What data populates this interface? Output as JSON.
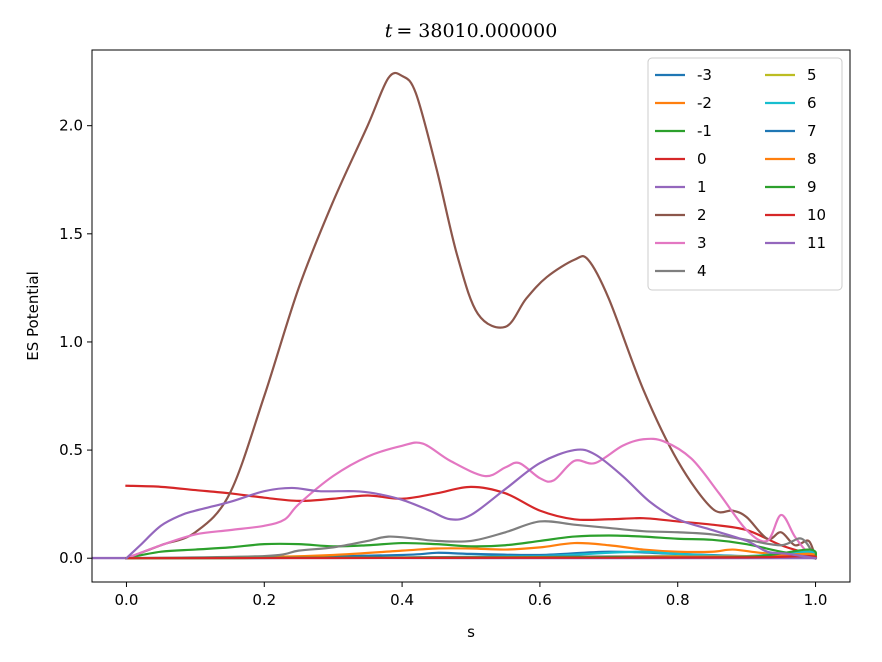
{
  "chart_data": {
    "type": "line",
    "title_var": "t",
    "title_value": "= 38010.000000",
    "xlabel": "s",
    "ylabel": "ES Potential",
    "xlim": [
      -0.05,
      1.05
    ],
    "ylim": [
      -0.11,
      2.35
    ],
    "xticks": [
      "0.0",
      "0.2",
      "0.4",
      "0.6",
      "0.8",
      "1.0"
    ],
    "xtick_values": [
      0.0,
      0.2,
      0.4,
      0.6,
      0.8,
      1.0
    ],
    "yticks": [
      "0.0",
      "0.5",
      "1.0",
      "1.5",
      "2.0"
    ],
    "ytick_values": [
      0.0,
      0.5,
      1.0,
      1.5,
      2.0
    ],
    "legend_position": "top-right",
    "legend_columns": 2,
    "series": [
      {
        "name": "-3",
        "color": "#1f77b4",
        "points": [
          [
            0,
            0
          ],
          [
            0.2,
            0.003
          ],
          [
            0.4,
            0.015
          ],
          [
            0.45,
            0.025
          ],
          [
            0.5,
            0.02
          ],
          [
            0.6,
            0.015
          ],
          [
            0.7,
            0.03
          ],
          [
            0.8,
            0.02
          ],
          [
            0.9,
            0.01
          ],
          [
            0.95,
            0.015
          ],
          [
            1.0,
            0
          ]
        ]
      },
      {
        "name": "-2",
        "color": "#ff7f0e",
        "points": [
          [
            0,
            0
          ],
          [
            0.2,
            0.005
          ],
          [
            0.3,
            0.015
          ],
          [
            0.4,
            0.035
          ],
          [
            0.45,
            0.045
          ],
          [
            0.5,
            0.045
          ],
          [
            0.55,
            0.04
          ],
          [
            0.6,
            0.05
          ],
          [
            0.65,
            0.07
          ],
          [
            0.7,
            0.06
          ],
          [
            0.75,
            0.04
          ],
          [
            0.8,
            0.03
          ],
          [
            0.85,
            0.03
          ],
          [
            0.88,
            0.04
          ],
          [
            0.92,
            0.025
          ],
          [
            0.96,
            0.02
          ],
          [
            0.99,
            0.03
          ],
          [
            1.0,
            0
          ]
        ]
      },
      {
        "name": "-1",
        "color": "#2ca02c",
        "points": [
          [
            0,
            0
          ],
          [
            0.05,
            0.03
          ],
          [
            0.1,
            0.04
          ],
          [
            0.15,
            0.05
          ],
          [
            0.2,
            0.065
          ],
          [
            0.25,
            0.065
          ],
          [
            0.3,
            0.055
          ],
          [
            0.35,
            0.06
          ],
          [
            0.4,
            0.07
          ],
          [
            0.45,
            0.065
          ],
          [
            0.5,
            0.055
          ],
          [
            0.55,
            0.06
          ],
          [
            0.6,
            0.08
          ],
          [
            0.65,
            0.1
          ],
          [
            0.7,
            0.105
          ],
          [
            0.75,
            0.1
          ],
          [
            0.8,
            0.09
          ],
          [
            0.85,
            0.085
          ],
          [
            0.9,
            0.065
          ],
          [
            0.95,
            0.03
          ],
          [
            0.99,
            0.01
          ],
          [
            1.0,
            0
          ]
        ]
      },
      {
        "name": "0",
        "color": "#d62728",
        "points": [
          [
            0,
            0.335
          ],
          [
            0.05,
            0.33
          ],
          [
            0.1,
            0.315
          ],
          [
            0.15,
            0.3
          ],
          [
            0.2,
            0.28
          ],
          [
            0.25,
            0.265
          ],
          [
            0.3,
            0.275
          ],
          [
            0.35,
            0.29
          ],
          [
            0.4,
            0.275
          ],
          [
            0.45,
            0.3
          ],
          [
            0.5,
            0.33
          ],
          [
            0.55,
            0.3
          ],
          [
            0.6,
            0.22
          ],
          [
            0.65,
            0.18
          ],
          [
            0.7,
            0.18
          ],
          [
            0.75,
            0.185
          ],
          [
            0.8,
            0.17
          ],
          [
            0.85,
            0.155
          ],
          [
            0.9,
            0.13
          ],
          [
            0.95,
            0.06
          ],
          [
            0.99,
            0.02
          ],
          [
            1.0,
            0.005
          ]
        ]
      },
      {
        "name": "1",
        "color": "#9467bd",
        "points": [
          [
            0,
            0
          ],
          [
            0.001,
            0.001
          ],
          [
            1.0,
            0
          ]
        ]
      },
      {
        "name": "2",
        "color": "#8c564b",
        "points": [
          [
            0,
            0
          ],
          [
            0.05,
            0.06
          ],
          [
            0.1,
            0.12
          ],
          [
            0.15,
            0.3
          ],
          [
            0.2,
            0.75
          ],
          [
            0.25,
            1.25
          ],
          [
            0.3,
            1.65
          ],
          [
            0.35,
            2.0
          ],
          [
            0.38,
            2.22
          ],
          [
            0.4,
            2.23
          ],
          [
            0.42,
            2.15
          ],
          [
            0.45,
            1.8
          ],
          [
            0.48,
            1.4
          ],
          [
            0.51,
            1.13
          ],
          [
            0.55,
            1.07
          ],
          [
            0.58,
            1.2
          ],
          [
            0.61,
            1.3
          ],
          [
            0.65,
            1.38
          ],
          [
            0.67,
            1.38
          ],
          [
            0.7,
            1.2
          ],
          [
            0.75,
            0.78
          ],
          [
            0.8,
            0.45
          ],
          [
            0.85,
            0.23
          ],
          [
            0.88,
            0.22
          ],
          [
            0.9,
            0.19
          ],
          [
            0.93,
            0.09
          ],
          [
            0.95,
            0.12
          ],
          [
            0.97,
            0.06
          ],
          [
            0.99,
            0.08
          ],
          [
            1.0,
            0
          ]
        ]
      },
      {
        "name": "3",
        "color": "#e377c2",
        "points": [
          [
            0,
            0
          ],
          [
            0.05,
            0.06
          ],
          [
            0.1,
            0.11
          ],
          [
            0.15,
            0.13
          ],
          [
            0.2,
            0.15
          ],
          [
            0.23,
            0.18
          ],
          [
            0.25,
            0.25
          ],
          [
            0.3,
            0.38
          ],
          [
            0.35,
            0.47
          ],
          [
            0.4,
            0.52
          ],
          [
            0.43,
            0.53
          ],
          [
            0.47,
            0.45
          ],
          [
            0.52,
            0.38
          ],
          [
            0.55,
            0.42
          ],
          [
            0.57,
            0.44
          ],
          [
            0.6,
            0.37
          ],
          [
            0.62,
            0.36
          ],
          [
            0.65,
            0.45
          ],
          [
            0.68,
            0.44
          ],
          [
            0.72,
            0.52
          ],
          [
            0.75,
            0.55
          ],
          [
            0.78,
            0.54
          ],
          [
            0.82,
            0.46
          ],
          [
            0.86,
            0.3
          ],
          [
            0.9,
            0.13
          ],
          [
            0.93,
            0.08
          ],
          [
            0.95,
            0.2
          ],
          [
            0.97,
            0.1
          ],
          [
            0.99,
            0.02
          ],
          [
            1.0,
            0
          ]
        ]
      },
      {
        "name": "4",
        "color": "#7f7f7f",
        "points": [
          [
            0,
            0
          ],
          [
            0.2,
            0.01
          ],
          [
            0.25,
            0.035
          ],
          [
            0.3,
            0.05
          ],
          [
            0.35,
            0.08
          ],
          [
            0.38,
            0.1
          ],
          [
            0.42,
            0.09
          ],
          [
            0.45,
            0.08
          ],
          [
            0.5,
            0.08
          ],
          [
            0.55,
            0.12
          ],
          [
            0.6,
            0.17
          ],
          [
            0.65,
            0.155
          ],
          [
            0.7,
            0.14
          ],
          [
            0.75,
            0.125
          ],
          [
            0.8,
            0.12
          ],
          [
            0.85,
            0.11
          ],
          [
            0.9,
            0.085
          ],
          [
            0.95,
            0.06
          ],
          [
            0.98,
            0.09
          ],
          [
            1.0,
            0
          ]
        ]
      },
      {
        "name": "5",
        "color": "#bcbd22",
        "points": [
          [
            0,
            0
          ],
          [
            0.3,
            0.002
          ],
          [
            0.6,
            0.005
          ],
          [
            0.8,
            0.01
          ],
          [
            0.9,
            0.01
          ],
          [
            0.97,
            0.015
          ],
          [
            0.99,
            0.025
          ],
          [
            1.0,
            0
          ]
        ]
      },
      {
        "name": "6",
        "color": "#17becf",
        "points": [
          [
            0,
            0
          ],
          [
            0.4,
            0.003
          ],
          [
            0.6,
            0.01
          ],
          [
            0.7,
            0.025
          ],
          [
            0.75,
            0.03
          ],
          [
            0.8,
            0.02
          ],
          [
            0.9,
            0.01
          ],
          [
            0.99,
            0.03
          ],
          [
            1.0,
            0
          ]
        ]
      },
      {
        "name": "7",
        "color": "#1f77b4",
        "points": [
          [
            0,
            0
          ],
          [
            0.3,
            0.002
          ],
          [
            0.5,
            0.005
          ],
          [
            0.7,
            0.008
          ],
          [
            0.9,
            0.006
          ],
          [
            0.99,
            0.01
          ],
          [
            1.0,
            0
          ]
        ]
      },
      {
        "name": "8",
        "color": "#ff7f0e",
        "points": [
          [
            0,
            0
          ],
          [
            0.3,
            0.002
          ],
          [
            0.5,
            0.004
          ],
          [
            0.7,
            0.006
          ],
          [
            0.9,
            0.008
          ],
          [
            0.99,
            0.02
          ],
          [
            1.0,
            0
          ]
        ]
      },
      {
        "name": "9",
        "color": "#2ca02c",
        "points": [
          [
            0,
            0
          ],
          [
            0.3,
            0.002
          ],
          [
            0.5,
            0.003
          ],
          [
            0.7,
            0.005
          ],
          [
            0.9,
            0.006
          ],
          [
            0.99,
            0.04
          ],
          [
            1.0,
            0
          ]
        ]
      },
      {
        "name": "10",
        "color": "#d62728",
        "points": [
          [
            0,
            0
          ],
          [
            0.3,
            0.001
          ],
          [
            0.6,
            0.002
          ],
          [
            0.9,
            0.004
          ],
          [
            0.99,
            0.01
          ],
          [
            1.0,
            0
          ]
        ]
      },
      {
        "name": "11",
        "color": "#9467bd",
        "points": [
          [
            0,
            0
          ],
          [
            0.02,
            0.06
          ],
          [
            0.05,
            0.15
          ],
          [
            0.08,
            0.2
          ],
          [
            0.1,
            0.22
          ],
          [
            0.15,
            0.26
          ],
          [
            0.2,
            0.31
          ],
          [
            0.24,
            0.325
          ],
          [
            0.28,
            0.31
          ],
          [
            0.33,
            0.31
          ],
          [
            0.36,
            0.3
          ],
          [
            0.4,
            0.27
          ],
          [
            0.44,
            0.22
          ],
          [
            0.47,
            0.18
          ],
          [
            0.5,
            0.2
          ],
          [
            0.55,
            0.32
          ],
          [
            0.6,
            0.44
          ],
          [
            0.65,
            0.5
          ],
          [
            0.68,
            0.48
          ],
          [
            0.72,
            0.38
          ],
          [
            0.76,
            0.26
          ],
          [
            0.8,
            0.18
          ],
          [
            0.85,
            0.13
          ],
          [
            0.9,
            0.08
          ],
          [
            0.93,
            0.03
          ],
          [
            0.96,
            0.02
          ],
          [
            1.0,
            0
          ]
        ]
      }
    ]
  }
}
